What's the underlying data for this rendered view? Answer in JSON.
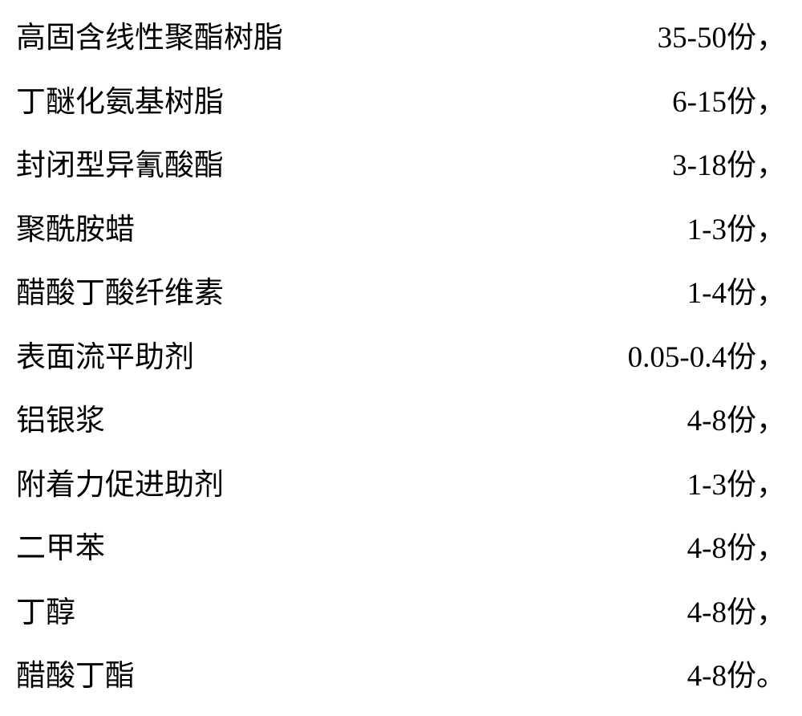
{
  "ingredients": [
    {
      "name": "高固含线性聚酯树脂",
      "amount": "35-50份，"
    },
    {
      "name": "丁醚化氨基树脂",
      "amount": "6-15份，"
    },
    {
      "name": "封闭型异氰酸酯",
      "amount": "3-18份，"
    },
    {
      "name": "聚酰胺蜡",
      "amount": "1-3份，"
    },
    {
      "name": "醋酸丁酸纤维素",
      "amount": "1-4份，"
    },
    {
      "name": "表面流平助剂",
      "amount": "0.05-0.4份，"
    },
    {
      "name": "铝银浆",
      "amount": "4-8份，"
    },
    {
      "name": "附着力促进助剂",
      "amount": "1-3份，"
    },
    {
      "name": "二甲苯",
      "amount": "4-8份，"
    },
    {
      "name": "丁醇",
      "amount": "4-8份，"
    },
    {
      "name": "醋酸丁酯",
      "amount": "4-8份。"
    }
  ],
  "styles": {
    "background_color": "#ffffff",
    "text_color": "#000000",
    "font_size": 37,
    "line_height": 2.15,
    "font_family": "SimSun"
  }
}
